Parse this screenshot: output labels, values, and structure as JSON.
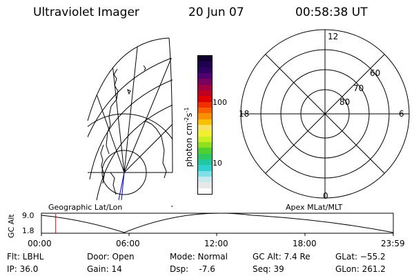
{
  "header": {
    "instrument": "Ultraviolet Imager",
    "date": "20 Jun 07",
    "time": "00:58:38 UT"
  },
  "geo_map": {
    "grid_color": "#000000",
    "coast_color": "#000000",
    "track_color": "#0000cc"
  },
  "colorbar": {
    "label": "photon cm",
    "label_exp1": "-2",
    "label_mid": "s",
    "label_exp2": "-1",
    "tick_labels": [
      "100",
      "10"
    ],
    "colors": [
      "#ffffff",
      "#e8e8e8",
      "#c8e8f0",
      "#80e0e8",
      "#30d0d0",
      "#20c8a0",
      "#30c860",
      "#50d030",
      "#90e020",
      "#c8f020",
      "#f0f030",
      "#f8e060",
      "#f8c000",
      "#f89000",
      "#f86000",
      "#f03000",
      "#e00000",
      "#c00020",
      "#a00040",
      "#7a0060",
      "#500070",
      "#300060",
      "#200050",
      "#100030"
    ]
  },
  "polar_plot": {
    "mlt_labels": {
      "top": "12",
      "right": "6",
      "left": "18",
      "bottom": "0"
    },
    "lat_labels": [
      "60",
      "70",
      "80"
    ]
  },
  "timeline": {
    "left_label": "Geographic Lat/Lon",
    "right_label": "Apex MLat/MLT",
    "axis_title": "GC Alt",
    "y_ticks": [
      "9.0",
      "1.8"
    ],
    "x_ticks": [
      "00:00",
      "06:00",
      "12:00",
      "18:00",
      "23:59"
    ],
    "marker_color": "#cc0000",
    "marker_time_hours": 0.976
  },
  "info": {
    "flt": "Flt: LBHL",
    "ip": "IP: 36.0",
    "door": "Door: Open",
    "gain": "Gain: 14",
    "mode": "Mode: Normal",
    "dsp": "Dsp:    -7.6",
    "gcalt": "GC Alt: 7.4 Re",
    "seq": "Seq: 39",
    "glat": "GLat: −55.2",
    "glon": "GLon: 261.2"
  }
}
